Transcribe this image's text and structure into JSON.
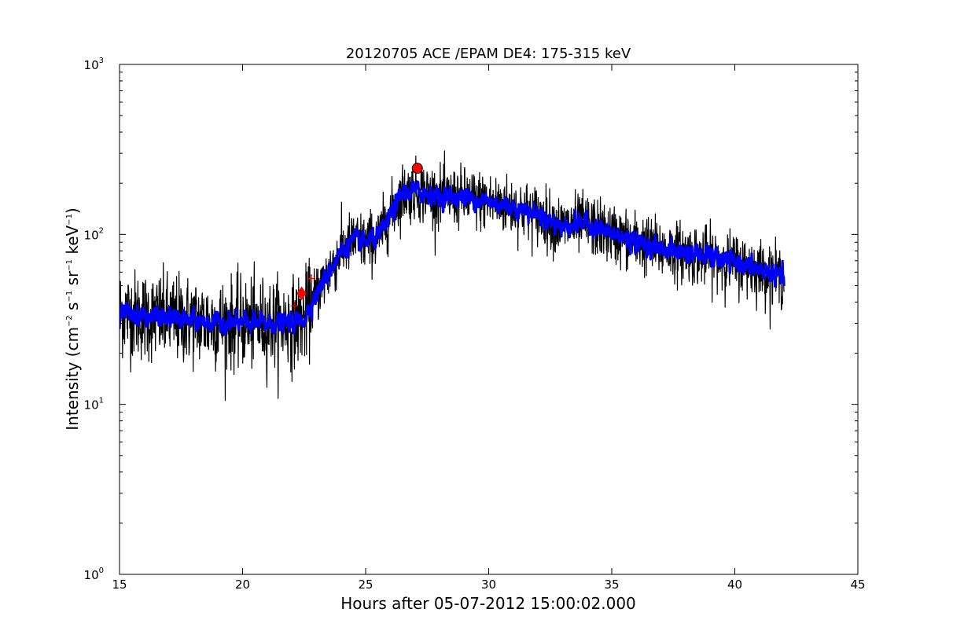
{
  "chart_data": {
    "type": "line",
    "title": "20120705 ACE /EPAM DE4: 175-315 keV",
    "xlabel": "Hours after 05-07-2012 15:00:02.000",
    "ylabel": {
      "prefix": "Intensity (cm",
      "sup1": "−2",
      "mid1": " s",
      "sup2": "−1",
      "mid2": " sr",
      "sup3": "−1",
      "mid3": " keV",
      "sup4": "−1",
      "suffix": ")"
    },
    "xlim": [
      15,
      45
    ],
    "ylim": [
      1,
      1000
    ],
    "yscale": "log",
    "grid": false,
    "x_ticks": [
      "15",
      "20",
      "25",
      "30",
      "35",
      "40",
      "45"
    ],
    "y_ticks": [
      {
        "base": "10",
        "exp": "0"
      },
      {
        "base": "10",
        "exp": "1"
      },
      {
        "base": "10",
        "exp": "2"
      },
      {
        "base": "10",
        "exp": "3"
      }
    ],
    "series": [
      {
        "color": "#000000",
        "style": "raw",
        "trend": {
          "x": [
            15.0,
            16.0,
            17.0,
            18.0,
            19.0,
            20.0,
            21.0,
            22.0,
            22.5,
            23.0,
            23.5,
            24.0,
            24.5,
            25.0,
            25.5,
            26.0,
            26.5,
            27.0,
            27.5,
            28.0,
            29.0,
            30.0,
            31.0,
            32.0,
            32.5,
            33.0,
            33.5,
            34.0,
            35.0,
            36.0,
            37.0,
            38.0,
            39.0,
            40.0,
            41.0,
            42.0
          ],
          "y": [
            35,
            33,
            32,
            31,
            30,
            30,
            30,
            30,
            32,
            45,
            60,
            80,
            92,
            90,
            95,
            130,
            175,
            180,
            175,
            165,
            165,
            155,
            145,
            130,
            120,
            110,
            115,
            115,
            100,
            90,
            82,
            78,
            73,
            68,
            62,
            55
          ]
        }
      },
      {
        "color": "#0000ff",
        "style": "smoothed",
        "trend": {
          "x": [
            15.0,
            16.0,
            17.0,
            18.0,
            19.0,
            20.0,
            21.0,
            22.0,
            22.5,
            23.0,
            23.5,
            24.0,
            24.5,
            25.0,
            25.5,
            26.0,
            26.5,
            27.0,
            27.5,
            28.0,
            29.0,
            30.0,
            31.0,
            32.0,
            32.5,
            33.0,
            33.5,
            34.0,
            35.0,
            36.0,
            37.0,
            38.0,
            39.0,
            40.0,
            41.0,
            42.0
          ],
          "y": [
            35,
            33,
            32,
            31,
            30,
            30,
            30,
            30,
            32,
            45,
            60,
            80,
            92,
            90,
            95,
            130,
            175,
            180,
            175,
            165,
            165,
            155,
            145,
            130,
            120,
            110,
            115,
            115,
            100,
            90,
            82,
            78,
            73,
            68,
            62,
            55
          ]
        }
      }
    ],
    "markers": [
      {
        "type": "circle",
        "x": 27.1,
        "y": 245,
        "color": "#ff0000"
      },
      {
        "type": "diamond",
        "x": 22.4,
        "y": 45,
        "color": "#ff0000"
      },
      {
        "type": "plus",
        "x": 22.8,
        "y": 55,
        "color": "#ff0000"
      },
      {
        "type": "plus",
        "x": 22.1,
        "y": 38,
        "color": "#ff0000"
      }
    ]
  }
}
